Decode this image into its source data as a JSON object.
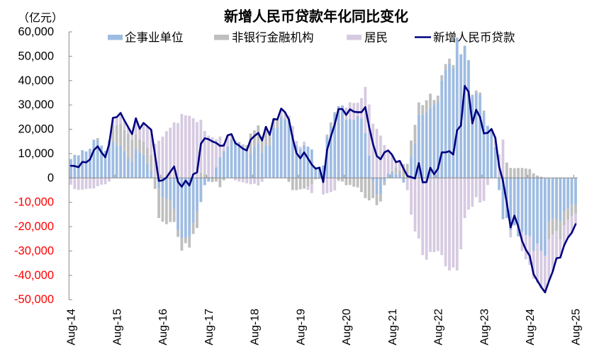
{
  "chart_data": {
    "type": "bar",
    "title": "新增人民币贷款年化同比变化",
    "unit_label": "（亿元）",
    "xlabel": "",
    "ylabel": "（亿元）",
    "ylim": [
      -50000,
      60000
    ],
    "y_ticks": [
      60000,
      50000,
      40000,
      30000,
      20000,
      10000,
      0,
      -10000,
      -20000,
      -30000,
      -40000,
      -50000
    ],
    "y_tick_labels": [
      "60,000",
      "50,000",
      "40,000",
      "30,000",
      "20,000",
      "10,000",
      "0",
      "-10,000",
      "-20,000",
      "-30,000",
      "-40,000",
      "-50,000"
    ],
    "x_tick_labels": [
      "Aug-14",
      "Aug-15",
      "Aug-16",
      "Aug-17",
      "Aug-18",
      "Aug-19",
      "Aug-20",
      "Aug-21",
      "Aug-22",
      "Aug-23",
      "Aug-24",
      "Aug-25"
    ],
    "grid": false,
    "legend_position": "top",
    "colors": {
      "axis": "#898989",
      "positive_tick_label": "#000000",
      "negative_tick_label": "#FF0000"
    },
    "series": [
      {
        "name": "企事业单位",
        "type": "bar",
        "stacked": true,
        "color": "#9EBCE2",
        "values": [
          7800,
          9500,
          9300,
          11400,
          10900,
          12000,
          15700,
          15500,
          13300,
          11100,
          15400,
          14800,
          13400,
          13400,
          11100,
          8200,
          6600,
          11900,
          10500,
          9500,
          6100,
          3000,
          0,
          -4400,
          -8000,
          -8500,
          -9400,
          -12700,
          -21300,
          -24600,
          -24600,
          -24000,
          -18600,
          -13800,
          -9900,
          -3000,
          -1500,
          500,
          4400,
          8500,
          11000,
          12900,
          15800,
          14800,
          14300,
          13000,
          12000,
          10000,
          12900,
          14300,
          10500,
          13400,
          13400,
          20600,
          20600,
          25000,
          24000,
          24000,
          17700,
          13400,
          11900,
          13400,
          12900,
          11700,
          4400,
          3700,
          5100,
          17000,
          21300,
          26600,
          29500,
          29800,
          24000,
          24200,
          23900,
          25500,
          24500,
          18400,
          9200,
          -1500,
          -6800,
          -6800,
          -1500,
          1900,
          2400,
          1600,
          1600,
          -1900,
          0,
          8900,
          14300,
          26000,
          26000,
          27100,
          28800,
          30300,
          31200,
          40000,
          44400,
          47000,
          45000,
          57600,
          50800,
          54300,
          48400,
          33500,
          35000,
          34100,
          26700,
          21400,
          20100,
          12600,
          -5000,
          -17000,
          -16500,
          -21500,
          -19500,
          -24000,
          -22000,
          -23500,
          -24000,
          -30000,
          -27000,
          -30000,
          -32000,
          -17900,
          -16500,
          -17000,
          -17900,
          -13600,
          -12600,
          -10900,
          -11100
        ]
      },
      {
        "name": "非银行金融机构",
        "type": "bar",
        "stacked": true,
        "color": "#BFBFBF",
        "values": [
          0,
          0,
          0,
          0,
          0,
          0,
          -500,
          900,
          0,
          0,
          0,
          7000,
          8400,
          9000,
          8600,
          10000,
          9000,
          6000,
          5300,
          5500,
          6300,
          6500,
          -4500,
          -12100,
          -10000,
          -10500,
          -8700,
          -5400,
          -2900,
          -5300,
          -2200,
          -4600,
          -4400,
          -6800,
          2200,
          1500,
          500,
          -1700,
          -1500,
          -3800,
          -1000,
          0,
          0,
          500,
          500,
          800,
          1500,
          8300,
          6700,
          7300,
          6500,
          7600,
          4300,
          3600,
          3400,
          600,
          500,
          -1600,
          -5000,
          -5000,
          -4700,
          -4400,
          -3600,
          -2600,
          -600,
          1000,
          0,
          800,
          1500,
          500,
          -1200,
          -1500,
          -3000,
          -2900,
          -3600,
          -3900,
          -5800,
          -8300,
          -9200,
          -6800,
          -4400,
          -2900,
          -1500,
          0,
          300,
          2700,
          1400,
          5700,
          5800,
          6500,
          7500,
          5000,
          3900,
          4800,
          5800,
          1700,
          2600,
          2200,
          2400,
          2000,
          1400,
          0,
          0,
          0,
          0,
          700,
          900,
          1000,
          1000,
          0,
          0,
          0,
          0,
          800,
          6300,
          4100,
          4000,
          4100,
          4100,
          3900,
          3700,
          1900,
          1000,
          500,
          0,
          -7300,
          -6800,
          -4800,
          -7300,
          -5800,
          -4700,
          -4700,
          -3500
        ]
      },
      {
        "name": "居民",
        "type": "bar",
        "stacked": true,
        "color": "#D6CAE1",
        "values": [
          -2800,
          -4600,
          -4900,
          -4800,
          -4500,
          -4400,
          -3800,
          -3400,
          -2800,
          -2600,
          -1500,
          2900,
          3200,
          4300,
          3900,
          2600,
          2400,
          6600,
          4400,
          7600,
          8800,
          10300,
          14000,
          15300,
          17000,
          19200,
          20600,
          22800,
          22600,
          26300,
          25700,
          25500,
          24500,
          22900,
          21700,
          17800,
          16900,
          16200,
          11500,
          8500,
          3300,
          4600,
          2200,
          -1000,
          -1500,
          -1800,
          -2200,
          -2600,
          -2400,
          -3100,
          -1600,
          0,
          0,
          0,
          0,
          2900,
          2500,
          1600,
          3600,
          1800,
          900,
          1500,
          -1300,
          -3600,
          0,
          -500,
          -6800,
          -6300,
          -5800,
          -5100,
          0,
          0,
          4900,
          6900,
          6900,
          5400,
          8300,
          19000,
          21000,
          22300,
          20200,
          17400,
          13500,
          9400,
          6800,
          2200,
          4000,
          0,
          -5000,
          -15100,
          -22000,
          -24900,
          -31700,
          -33600,
          -30400,
          -30500,
          -30000,
          -31700,
          -36300,
          -38000,
          -36800,
          -38000,
          -29300,
          -16500,
          -13000,
          -11800,
          -7900,
          -10100,
          -9400,
          -2900,
          0,
          3900,
          9700,
          15000,
          0,
          -2900,
          0,
          0,
          -8000,
          -9900,
          -11700,
          -11400,
          -16200,
          -15300,
          -15000,
          -17300,
          -15200,
          -11200,
          -7500,
          -8300,
          -7200,
          -6900,
          -4400
        ]
      },
      {
        "name": "新增人民币贷款",
        "type": "line",
        "color": "#000080",
        "values": [
          5000,
          4900,
          4400,
          6600,
          6400,
          7600,
          11400,
          13000,
          10500,
          8500,
          13900,
          24700,
          25000,
          26700,
          23600,
          20800,
          18000,
          24500,
          20200,
          22600,
          21200,
          19800,
          9500,
          -1200,
          -1000,
          200,
          2500,
          4700,
          -1600,
          -3600,
          -1100,
          -3100,
          1500,
          2300,
          14000,
          16300,
          15900,
          15000,
          14400,
          13200,
          13300,
          17500,
          18000,
          14300,
          13300,
          12000,
          11300,
          15700,
          17200,
          18500,
          15400,
          21000,
          17700,
          24200,
          24000,
          28500,
          27000,
          24000,
          16300,
          10200,
          8100,
          10500,
          8000,
          5500,
          3800,
          4200,
          -1700,
          11500,
          17000,
          22000,
          28300,
          28300,
          25900,
          28200,
          27200,
          27000,
          27000,
          29100,
          21000,
          14000,
          9000,
          7700,
          10500,
          11300,
          9500,
          6500,
          7000,
          3800,
          800,
          300,
          -200,
          6100,
          -1800,
          -1700,
          4200,
          1500,
          3800,
          10500,
          10500,
          11000,
          9600,
          19600,
          21500,
          37800,
          35400,
          22400,
          28000,
          25000,
          18300,
          18500,
          20100,
          16500,
          4700,
          -1200,
          -10200,
          -20300,
          -15500,
          -19900,
          -25900,
          -29500,
          -32000,
          -39500,
          -42200,
          -44800,
          -47000,
          -42500,
          -38500,
          -33000,
          -32700,
          -27700,
          -24500,
          -22500,
          -19000
        ]
      }
    ]
  }
}
